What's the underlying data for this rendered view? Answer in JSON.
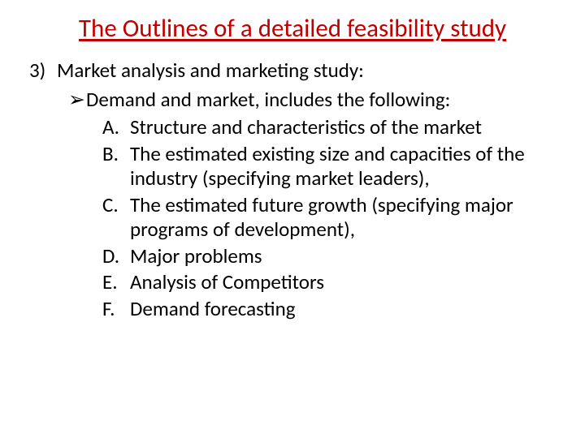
{
  "colors": {
    "title": "#c00000",
    "body": "#000000",
    "background": "#ffffff"
  },
  "typography": {
    "title_fontsize": 31,
    "body_fontsize": 25,
    "font_family": "Calibri"
  },
  "title": "The Outlines of a detailed feasibility study",
  "section": {
    "number": "3)",
    "text": "Market analysis and marketing study:"
  },
  "sub": {
    "bullet": "➢",
    "text": "Demand and market,  includes the following:"
  },
  "items": [
    {
      "letter": "A.",
      "text": "Structure and characteristics of the market"
    },
    {
      "letter": "B.",
      "text": "The estimated existing size and capacities of the industry (specifying market leaders),"
    },
    {
      "letter": "C.",
      "text": "The estimated future growth (specifying major programs of development),"
    },
    {
      "letter": "D.",
      "text": "Major problems"
    },
    {
      "letter": "E.",
      "text": "Analysis of Competitors"
    },
    {
      "letter": "F.",
      "text": "Demand forecasting"
    }
  ]
}
